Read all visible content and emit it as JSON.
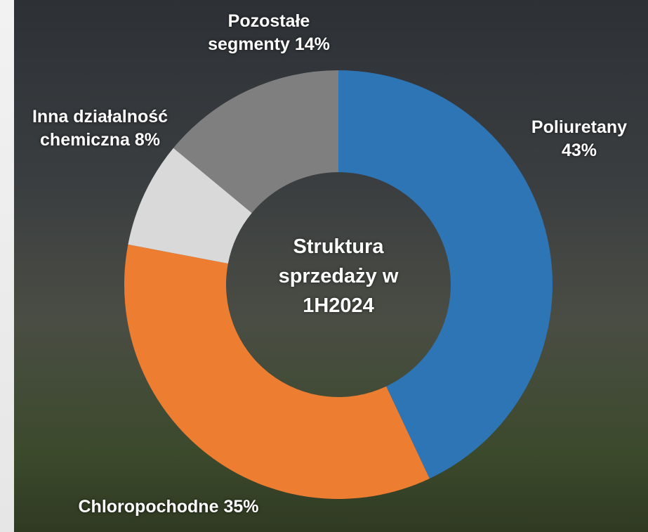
{
  "chart_data": {
    "type": "donut",
    "title": "Struktura sprzedaży w 1H2024",
    "categories": [
      "Poliuretany",
      "Chloropochodne",
      "Inna działalność chemiczna",
      "Pozostałe segmenty"
    ],
    "values": [
      43,
      35,
      8,
      14
    ],
    "value_labels": [
      "43%",
      "35%",
      "8%",
      "14%"
    ],
    "colors": [
      "#2e75b6",
      "#ed7d31",
      "#d9d9d9",
      "#7f7f7f"
    ]
  }
}
